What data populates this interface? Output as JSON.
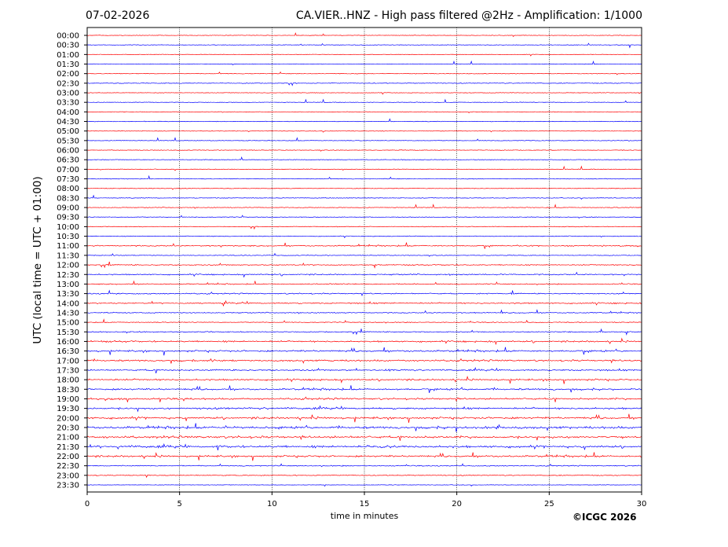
{
  "header": {
    "date": "07-02-2026",
    "title": "CA.VIER..HNZ - High pass filtered @2Hz - Amplification: 1/1000"
  },
  "footer": {
    "copyright": "©ICGC 2026"
  },
  "chart_data": {
    "type": "line",
    "title": "CA.VIER..HNZ - High pass filtered @2Hz - Amplification: 1/1000",
    "xlabel": "time in minutes",
    "ylabel": "UTC (local time = UTC + 01:00)",
    "xlim": [
      0,
      30
    ],
    "x_ticks": [
      0,
      5,
      10,
      15,
      20,
      25,
      30
    ],
    "grid": "vertical dotted lines at 5, 10, 15, 20, 25",
    "colors": {
      "red": "#ff0000",
      "blue": "#0000ff"
    },
    "rows": [
      {
        "label": "00:00",
        "color": "red",
        "activity": 0.05
      },
      {
        "label": "00:30",
        "color": "blue",
        "activity": 0.05
      },
      {
        "label": "01:00",
        "color": "red",
        "activity": 0.05
      },
      {
        "label": "01:30",
        "color": "blue",
        "activity": 0.05
      },
      {
        "label": "02:00",
        "color": "red",
        "activity": 0.08
      },
      {
        "label": "02:30",
        "color": "blue",
        "activity": 0.12
      },
      {
        "label": "03:00",
        "color": "red",
        "activity": 0.05
      },
      {
        "label": "03:30",
        "color": "blue",
        "activity": 0.05
      },
      {
        "label": "04:00",
        "color": "red",
        "activity": 0.05
      },
      {
        "label": "04:30",
        "color": "blue",
        "activity": 0.08
      },
      {
        "label": "05:00",
        "color": "red",
        "activity": 0.05
      },
      {
        "label": "05:30",
        "color": "blue",
        "activity": 0.05
      },
      {
        "label": "06:00",
        "color": "red",
        "activity": 0.08
      },
      {
        "label": "06:30",
        "color": "blue",
        "activity": 0.08
      },
      {
        "label": "07:00",
        "color": "red",
        "activity": 0.1
      },
      {
        "label": "07:30",
        "color": "blue",
        "activity": 0.1
      },
      {
        "label": "08:00",
        "color": "red",
        "activity": 0.1
      },
      {
        "label": "08:30",
        "color": "blue",
        "activity": 0.08
      },
      {
        "label": "09:00",
        "color": "red",
        "activity": 0.12
      },
      {
        "label": "09:30",
        "color": "blue",
        "activity": 0.1
      },
      {
        "label": "10:00",
        "color": "red",
        "activity": 0.12
      },
      {
        "label": "10:30",
        "color": "blue",
        "activity": 0.15
      },
      {
        "label": "11:00",
        "color": "red",
        "activity": 0.35
      },
      {
        "label": "11:30",
        "color": "blue",
        "activity": 0.1
      },
      {
        "label": "12:00",
        "color": "red",
        "activity": 0.3
      },
      {
        "label": "12:30",
        "color": "blue",
        "activity": 0.35
      },
      {
        "label": "13:00",
        "color": "red",
        "activity": 0.25
      },
      {
        "label": "13:30",
        "color": "blue",
        "activity": 0.3
      },
      {
        "label": "14:00",
        "color": "red",
        "activity": 0.4
      },
      {
        "label": "14:30",
        "color": "blue",
        "activity": 0.25
      },
      {
        "label": "15:00",
        "color": "red",
        "activity": 0.15
      },
      {
        "label": "15:30",
        "color": "blue",
        "activity": 0.25
      },
      {
        "label": "16:00",
        "color": "red",
        "activity": 0.5
      },
      {
        "label": "16:30",
        "color": "blue",
        "activity": 0.6
      },
      {
        "label": "17:00",
        "color": "red",
        "activity": 0.55
      },
      {
        "label": "17:30",
        "color": "blue",
        "activity": 0.45
      },
      {
        "label": "18:00",
        "color": "red",
        "activity": 0.55
      },
      {
        "label": "18:30",
        "color": "blue",
        "activity": 0.6
      },
      {
        "label": "19:00",
        "color": "red",
        "activity": 0.55
      },
      {
        "label": "19:30",
        "color": "blue",
        "activity": 0.6
      },
      {
        "label": "20:00",
        "color": "red",
        "activity": 0.7
      },
      {
        "label": "20:30",
        "color": "blue",
        "activity": 0.8
      },
      {
        "label": "21:00",
        "color": "red",
        "activity": 0.75
      },
      {
        "label": "21:30",
        "color": "blue",
        "activity": 0.8
      },
      {
        "label": "22:00",
        "color": "red",
        "activity": 0.65
      },
      {
        "label": "22:30",
        "color": "blue",
        "activity": 0.25
      },
      {
        "label": "23:00",
        "color": "red",
        "activity": 0.2
      },
      {
        "label": "23:30",
        "color": "blue",
        "activity": 0.0
      }
    ]
  }
}
